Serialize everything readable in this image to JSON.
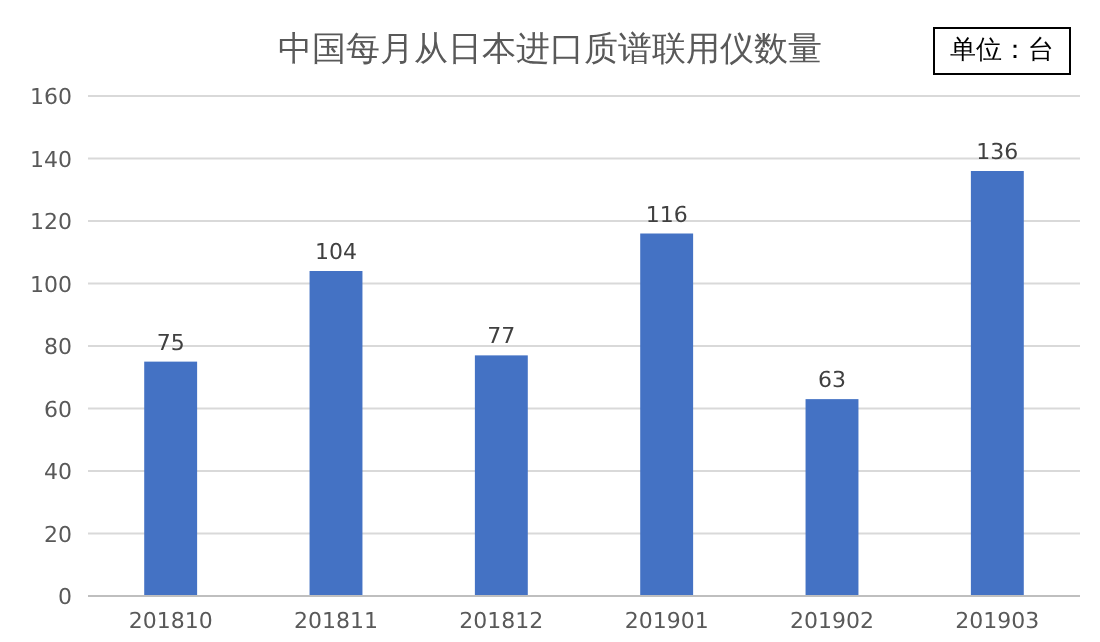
{
  "chart_data": {
    "type": "bar",
    "title": "中国每月从日本进口质谱联用仪数量",
    "annotations": [
      "单位：台"
    ],
    "categories": [
      "201810",
      "201811",
      "201812",
      "201901",
      "201902",
      "201903"
    ],
    "values": [
      75,
      104,
      77,
      116,
      63,
      136
    ],
    "color": "#4472c4",
    "ylim": [
      0,
      160
    ],
    "yticks": [
      0,
      20,
      40,
      60,
      80,
      100,
      120,
      140,
      160
    ],
    "grid": "y",
    "data_labels": true
  }
}
